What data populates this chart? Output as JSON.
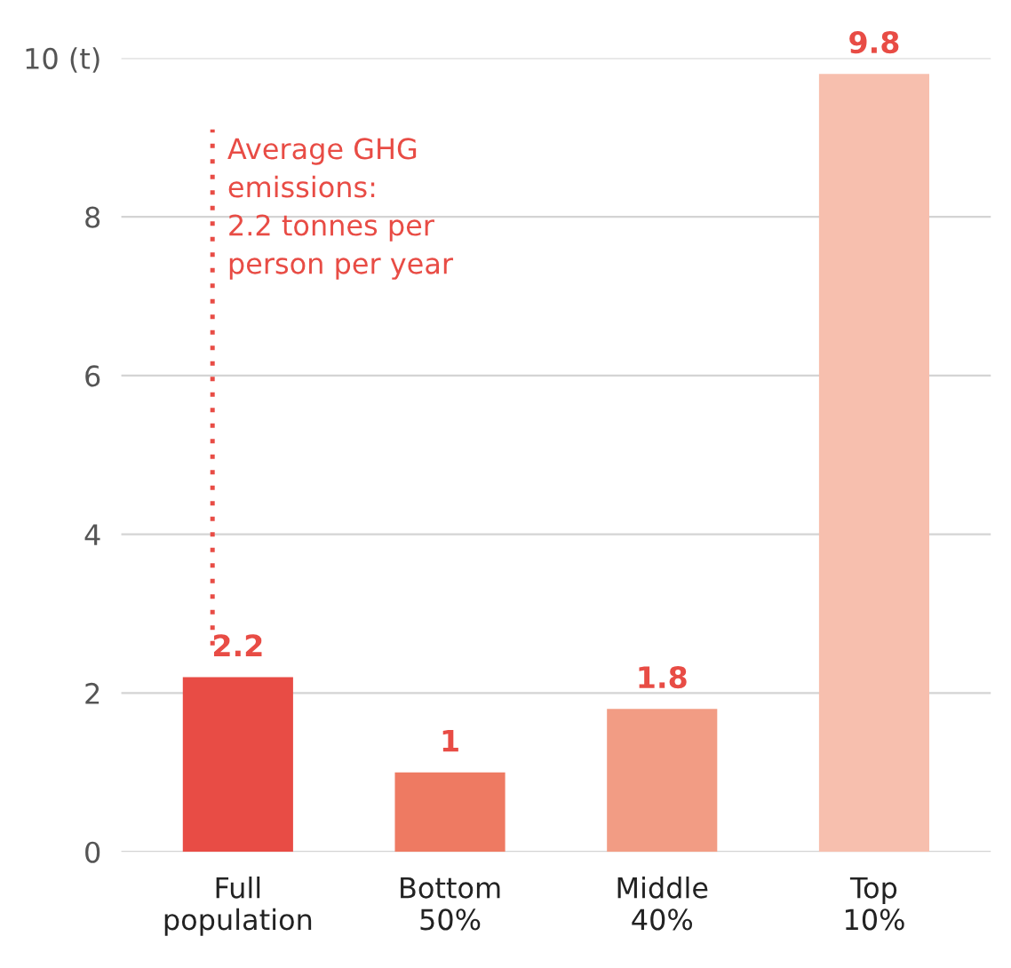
{
  "chart_data": {
    "type": "bar",
    "categories": [
      "Full\npopulation",
      "Bottom\n50%",
      "Middle\n40%",
      "Top\n10%"
    ],
    "values": [
      2.2,
      1,
      1.8,
      9.8
    ],
    "colors": [
      "#e84c45",
      "#ee7a62",
      "#f29c84",
      "#f7bfae"
    ],
    "data_labels": true,
    "ylim": [
      0,
      10
    ],
    "yticks": [
      0,
      2,
      4,
      6,
      8,
      {
        "value": 10,
        "label": "10 (t)"
      }
    ],
    "grid": "y",
    "annotations": [
      "Average GHG\nemissions:\n2.2 tonnes per\nperson per year"
    ]
  }
}
